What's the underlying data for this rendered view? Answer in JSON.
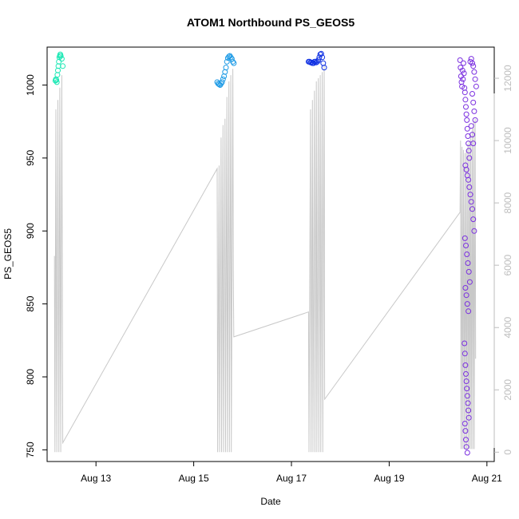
{
  "chart_data": {
    "type": "scatter",
    "title": "ATOM1 Northbound PS_GEOS5",
    "xlabel": "Date",
    "ylabel": "PS_GEOS5",
    "x_unit": "days in August",
    "xlim": [
      12.0,
      21.15
    ],
    "ylim": [
      742,
      1026
    ],
    "y2lim": [
      -300,
      13000
    ],
    "x_ticks": [
      13,
      15,
      17,
      19,
      21
    ],
    "x_tick_labels": [
      "Aug 13",
      "Aug 15",
      "Aug 17",
      "Aug 19",
      "Aug 21"
    ],
    "y_ticks": [
      750,
      800,
      850,
      900,
      950,
      1000
    ],
    "y_tick_labels": [
      "750",
      "800",
      "850",
      "900",
      "950",
      "1000"
    ],
    "y2_ticks": [
      0,
      2000,
      4000,
      6000,
      8000,
      10000,
      12000
    ],
    "y2_tick_labels": [
      "0",
      "2000",
      "4000",
      "6000",
      "8000",
      "10000",
      "12000"
    ],
    "grid": false,
    "background_line": {
      "color": "#c8c8c8",
      "points": [
        [
          12.15,
          6300
        ],
        [
          12.16,
          0
        ],
        [
          12.18,
          11000
        ],
        [
          12.2,
          0
        ],
        [
          12.22,
          11300
        ],
        [
          12.24,
          0
        ],
        [
          12.26,
          11700
        ],
        [
          12.28,
          0
        ],
        [
          12.3,
          12100
        ],
        [
          12.32,
          300
        ],
        [
          15.48,
          9100
        ],
        [
          15.49,
          0
        ],
        [
          15.52,
          9200
        ],
        [
          15.53,
          0
        ],
        [
          15.56,
          10100
        ],
        [
          15.57,
          0
        ],
        [
          15.6,
          10500
        ],
        [
          15.61,
          0
        ],
        [
          15.64,
          10700
        ],
        [
          15.65,
          0
        ],
        [
          15.68,
          11400
        ],
        [
          15.69,
          0
        ],
        [
          15.72,
          11900
        ],
        [
          15.73,
          0
        ],
        [
          15.76,
          12100
        ],
        [
          15.77,
          0
        ],
        [
          15.8,
          12300
        ],
        [
          15.81,
          5800
        ],
        [
          15.82,
          3700
        ],
        [
          17.35,
          4500
        ],
        [
          17.36,
          0
        ],
        [
          17.39,
          11000
        ],
        [
          17.4,
          0
        ],
        [
          17.43,
          11300
        ],
        [
          17.44,
          0
        ],
        [
          17.47,
          11600
        ],
        [
          17.48,
          0
        ],
        [
          17.51,
          11900
        ],
        [
          17.52,
          0
        ],
        [
          17.55,
          12000
        ],
        [
          17.56,
          0
        ],
        [
          17.59,
          12100
        ],
        [
          17.6,
          0
        ],
        [
          17.63,
          12200
        ],
        [
          17.64,
          0
        ],
        [
          17.67,
          12400
        ],
        [
          17.68,
          1700
        ],
        [
          20.45,
          7700
        ],
        [
          20.46,
          10000
        ],
        [
          20.47,
          100
        ],
        [
          20.49,
          9800
        ],
        [
          20.5,
          100
        ],
        [
          20.52,
          9700
        ],
        [
          20.53,
          100
        ],
        [
          20.55,
          9600
        ],
        [
          20.56,
          100
        ],
        [
          20.58,
          9700
        ],
        [
          20.59,
          100
        ],
        [
          20.61,
          9900
        ],
        [
          20.62,
          100
        ],
        [
          20.64,
          10000
        ],
        [
          20.65,
          100
        ],
        [
          20.67,
          10200
        ],
        [
          20.68,
          100
        ],
        [
          20.7,
          10400
        ],
        [
          20.71,
          100
        ],
        [
          20.73,
          10600
        ],
        [
          20.74,
          100
        ],
        [
          20.76,
          10700
        ],
        [
          20.77,
          3000
        ]
      ]
    },
    "series": [
      {
        "color": "#1de8b5",
        "points": [
          [
            12.17,
            1003
          ],
          [
            12.18,
            1004
          ],
          [
            12.19,
            1003.5
          ],
          [
            12.2,
            1002
          ],
          [
            12.21,
            1007
          ],
          [
            12.22,
            1010
          ],
          [
            12.23,
            1013
          ],
          [
            12.24,
            1016
          ],
          [
            12.25,
            1019
          ],
          [
            12.26,
            1020
          ],
          [
            12.27,
            1021
          ],
          [
            12.28,
            1020
          ],
          [
            12.3,
            1018
          ],
          [
            12.32,
            1013
          ]
        ]
      },
      {
        "color": "#1e9be6",
        "points": [
          [
            15.48,
            1002
          ],
          [
            15.5,
            1001
          ],
          [
            15.52,
            1000.5
          ],
          [
            15.54,
            1000
          ],
          [
            15.56,
            1001
          ],
          [
            15.58,
            1002
          ],
          [
            15.6,
            1004
          ],
          [
            15.62,
            1006
          ],
          [
            15.64,
            1009
          ],
          [
            15.66,
            1012
          ],
          [
            15.68,
            1016
          ],
          [
            15.7,
            1018.5
          ],
          [
            15.72,
            1019.5
          ],
          [
            15.74,
            1020
          ],
          [
            15.76,
            1019
          ],
          [
            15.78,
            1018
          ],
          [
            15.8,
            1016
          ],
          [
            15.82,
            1015
          ]
        ]
      },
      {
        "color": "#1132e3",
        "points": [
          [
            17.35,
            1016
          ],
          [
            17.37,
            1016
          ],
          [
            17.39,
            1015.5
          ],
          [
            17.41,
            1015.5
          ],
          [
            17.43,
            1015
          ],
          [
            17.45,
            1015
          ],
          [
            17.47,
            1016
          ],
          [
            17.49,
            1016
          ],
          [
            17.51,
            1015.5
          ],
          [
            17.53,
            1016
          ],
          [
            17.55,
            1017
          ],
          [
            17.57,
            1019
          ],
          [
            17.59,
            1021
          ],
          [
            17.61,
            1021.5
          ],
          [
            17.63,
            1019
          ],
          [
            17.65,
            1015
          ],
          [
            17.67,
            1012
          ]
        ]
      },
      {
        "color": "#7b2fe0",
        "points": [
          [
            20.45,
            1017
          ],
          [
            20.46,
            1012
          ],
          [
            20.47,
            1006
          ],
          [
            20.48,
            1002
          ],
          [
            20.49,
            999
          ],
          [
            20.5,
            1010
          ],
          [
            20.51,
            1004
          ],
          [
            20.52,
            1015
          ],
          [
            20.53,
            1008
          ],
          [
            20.54,
            998
          ],
          [
            20.55,
            995
          ],
          [
            20.56,
            990
          ],
          [
            20.57,
            985
          ],
          [
            20.58,
            980
          ],
          [
            20.59,
            976
          ],
          [
            20.6,
            970
          ],
          [
            20.61,
            965
          ],
          [
            20.62,
            960
          ],
          [
            20.63,
            955
          ],
          [
            20.64,
            950
          ],
          [
            20.56,
            945
          ],
          [
            20.58,
            942
          ],
          [
            20.6,
            938
          ],
          [
            20.62,
            935
          ],
          [
            20.64,
            930
          ],
          [
            20.66,
            925
          ],
          [
            20.68,
            920
          ],
          [
            20.7,
            915
          ],
          [
            20.72,
            908
          ],
          [
            20.74,
            900
          ],
          [
            20.55,
            895
          ],
          [
            20.57,
            890
          ],
          [
            20.59,
            884
          ],
          [
            20.61,
            878
          ],
          [
            20.63,
            872
          ],
          [
            20.65,
            865
          ],
          [
            20.56,
            861
          ],
          [
            20.58,
            856
          ],
          [
            20.6,
            850
          ],
          [
            20.62,
            845
          ],
          [
            20.54,
            823
          ],
          [
            20.55,
            816
          ],
          [
            20.56,
            808
          ],
          [
            20.57,
            802
          ],
          [
            20.58,
            797
          ],
          [
            20.59,
            792
          ],
          [
            20.6,
            787
          ],
          [
            20.61,
            782
          ],
          [
            20.62,
            777
          ],
          [
            20.63,
            772
          ],
          [
            20.55,
            768
          ],
          [
            20.56,
            763
          ],
          [
            20.57,
            757
          ],
          [
            20.58,
            752
          ],
          [
            20.6,
            748
          ],
          [
            20.66,
            1016
          ],
          [
            20.68,
            1018
          ],
          [
            20.7,
            1015
          ],
          [
            20.72,
            1013
          ],
          [
            20.74,
            1009
          ],
          [
            20.76,
            1004
          ],
          [
            20.78,
            999
          ],
          [
            20.7,
            994
          ],
          [
            20.72,
            988
          ],
          [
            20.74,
            982
          ],
          [
            20.76,
            976
          ],
          [
            20.68,
            972
          ],
          [
            20.7,
            966
          ],
          [
            20.72,
            960
          ]
        ]
      }
    ]
  }
}
